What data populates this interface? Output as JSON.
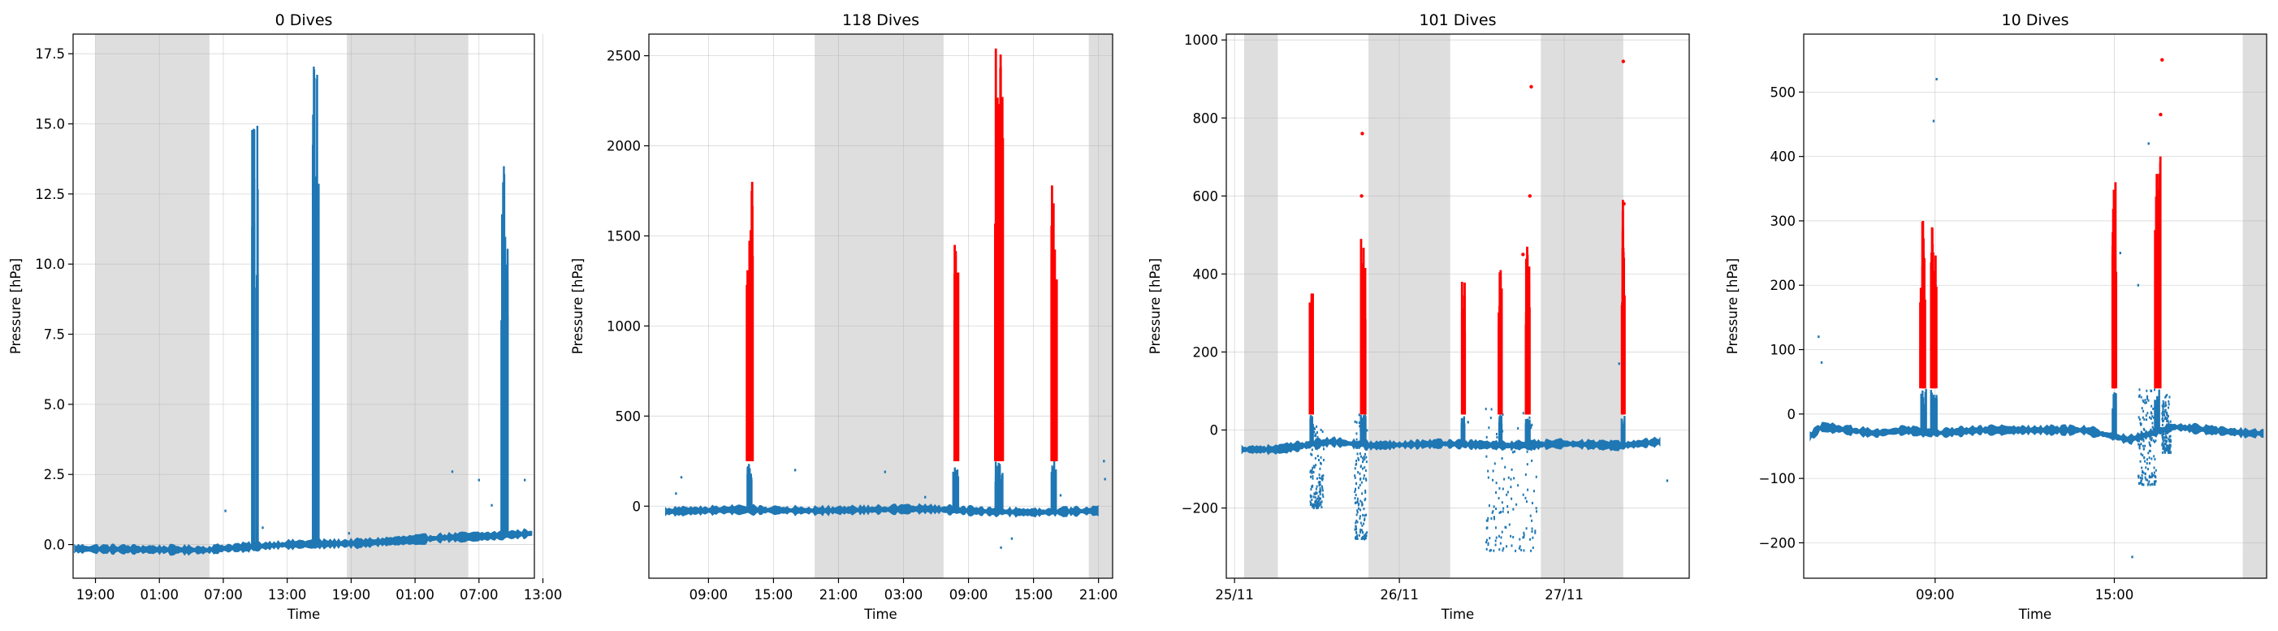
{
  "chart_data": [
    {
      "type": "scatter",
      "title": "0 Dives",
      "xlabel": "Time",
      "ylabel": "Pressure [hPa]",
      "x_ticks": [
        "19:00",
        "01:00",
        "07:00",
        "13:00",
        "19:00",
        "01:00",
        "07:00",
        "13:00"
      ],
      "x_tick_hours": [
        0,
        6,
        12,
        18,
        24,
        30,
        36,
        42
      ],
      "x_range_hours": [
        -2.1,
        41.2
      ],
      "y_ticks": [
        0.0,
        2.5,
        5.0,
        7.5,
        10.0,
        12.5,
        15.0,
        17.5
      ],
      "y_tick_labels": [
        "0.0",
        "2.5",
        "5.0",
        "7.5",
        "10.0",
        "12.5",
        "15.0",
        "17.5"
      ],
      "ylim": [
        -1.2,
        18.2
      ],
      "night_shading_hours": [
        [
          0,
          10.7
        ],
        [
          23.6,
          35
        ]
      ],
      "baseline": [
        [
          -2,
          -0.15
        ],
        [
          10.5,
          -0.2
        ],
        [
          11.5,
          -0.15
        ],
        [
          18,
          0.0
        ],
        [
          25,
          0.05
        ],
        [
          33,
          0.25
        ],
        [
          37,
          0.3
        ],
        [
          41,
          0.4
        ]
      ],
      "bursts": [
        {
          "hour": 15.0,
          "width": 0.6,
          "max": 15.2
        },
        {
          "hour": 20.7,
          "width": 0.6,
          "max": 17.3
        },
        {
          "hour": 38.4,
          "width": 0.6,
          "max": 13.6
        }
      ],
      "scatter_points": [
        [
          12.2,
          1.2
        ],
        [
          33.5,
          2.6
        ],
        [
          36.0,
          2.3
        ],
        [
          40.3,
          2.3
        ],
        [
          37.2,
          1.4
        ],
        [
          15.7,
          0.6
        ],
        [
          23.8,
          0.4
        ]
      ],
      "highlight_points": [],
      "series": [
        {
          "color": "#1f77b4"
        }
      ]
    },
    {
      "type": "scatter",
      "title": "118 Dives",
      "xlabel": "Time",
      "ylabel": "Pressure [hPa]",
      "x_ticks": [
        "09:00",
        "15:00",
        "21:00",
        "03:00",
        "09:00",
        "15:00",
        "21:00"
      ],
      "x_tick_hours": [
        0,
        6,
        12,
        18,
        24,
        30,
        36
      ],
      "x_range_hours": [
        -5.5,
        37.3
      ],
      "y_ticks": [
        0,
        500,
        1000,
        1500,
        2000,
        2500
      ],
      "y_tick_labels": [
        "0",
        "500",
        "1000",
        "1500",
        "2000",
        "2500"
      ],
      "ylim": [
        -400,
        2620
      ],
      "night_shading_hours": [
        [
          9.8,
          21.7
        ],
        [
          35.1,
          37.3
        ]
      ],
      "baseline": [
        [
          -4,
          -30
        ],
        [
          2,
          -20
        ],
        [
          10,
          -25
        ],
        [
          20,
          -15
        ],
        [
          26,
          -30
        ],
        [
          30,
          -35
        ],
        [
          36,
          -25
        ]
      ],
      "bursts": [
        {
          "hour": 3.8,
          "width": 0.6,
          "max": 1800
        },
        {
          "hour": 22.8,
          "width": 0.5,
          "max": 1450
        },
        {
          "hour": 26.8,
          "width": 0.8,
          "max": 2540
        },
        {
          "hour": 31.9,
          "width": 0.5,
          "max": 1780
        }
      ],
      "red_threshold": 250,
      "scatter_points": [
        [
          -2.5,
          160
        ],
        [
          -3.0,
          70
        ],
        [
          8.0,
          200
        ],
        [
          16.3,
          190
        ],
        [
          36.5,
          250
        ],
        [
          36.6,
          150
        ],
        [
          28.0,
          -180
        ],
        [
          27.0,
          -230
        ],
        [
          32.5,
          60
        ],
        [
          20.0,
          50
        ]
      ],
      "highlight_points": [],
      "series": [
        {
          "color": "#1f77b4"
        },
        {
          "color": "#ff0000"
        }
      ]
    },
    {
      "type": "scatter",
      "title": "101 Dives",
      "xlabel": "Time",
      "ylabel": "Pressure [hPa]",
      "x_ticks": [
        "25/11",
        "26/11",
        "27/11"
      ],
      "x_tick_hours": [
        0,
        24,
        48
      ],
      "x_range_hours": [
        -1.2,
        66.2
      ],
      "y_ticks": [
        -200,
        0,
        200,
        400,
        600,
        800,
        1000
      ],
      "y_tick_labels": [
        "−200",
        "0",
        "200",
        "400",
        "600",
        "800",
        "1000"
      ],
      "ylim": [
        -380,
        1015
      ],
      "night_shading_hours": [
        [
          1.4,
          6.3
        ],
        [
          19.5,
          31.4
        ],
        [
          44.6,
          56.6
        ]
      ],
      "baseline": [
        [
          1.0,
          -50
        ],
        [
          6.0,
          -50
        ],
        [
          14,
          -30
        ],
        [
          20,
          -40
        ],
        [
          30,
          -35
        ],
        [
          40,
          -40
        ],
        [
          48,
          -35
        ],
        [
          56,
          -40
        ],
        [
          62,
          -30
        ]
      ],
      "bursts": [
        {
          "hour": 11.2,
          "width": 0.3,
          "max": 350
        },
        {
          "hour": 18.7,
          "width": 0.8,
          "max": 490
        },
        {
          "hour": 33.3,
          "width": 0.3,
          "max": 380
        },
        {
          "hour": 38.7,
          "width": 0.3,
          "max": 410
        },
        {
          "hour": 42.7,
          "width": 0.6,
          "max": 470
        },
        {
          "hour": 56.6,
          "width": 0.4,
          "max": 590
        }
      ],
      "red_threshold": 40,
      "noise_regions": [
        {
          "from": 17.5,
          "to": 19.3,
          "min": -280,
          "max": 40
        },
        {
          "from": 36.5,
          "to": 44.0,
          "min": -310,
          "max": 60
        },
        {
          "from": 11.0,
          "to": 13.0,
          "min": -200,
          "max": 20
        }
      ],
      "scatter_points": [
        [
          18.6,
          760
        ],
        [
          18.5,
          600
        ],
        [
          43.2,
          880
        ],
        [
          43.0,
          600
        ],
        [
          56.6,
          945
        ],
        [
          56.7,
          580
        ],
        [
          42.0,
          450
        ],
        [
          34.0,
          20
        ],
        [
          56.0,
          170
        ],
        [
          63.0,
          -130
        ]
      ],
      "highlight_points": [
        [
          18.6,
          760
        ],
        [
          18.5,
          600
        ],
        [
          43.2,
          880
        ],
        [
          43.0,
          600
        ],
        [
          56.6,
          945
        ],
        [
          56.7,
          580
        ],
        [
          42.0,
          450
        ]
      ],
      "series": [
        {
          "color": "#1f77b4"
        },
        {
          "color": "#ff0000"
        }
      ]
    },
    {
      "type": "scatter",
      "title": "10 Dives",
      "xlabel": "Time",
      "ylabel": "Pressure [hPa]",
      "x_ticks": [
        "09:00",
        "15:00"
      ],
      "x_tick_hours": [
        9,
        15
      ],
      "x_range_hours": [
        4.6,
        20.1
      ],
      "y_ticks": [
        -200,
        -100,
        0,
        100,
        200,
        300,
        400,
        500
      ],
      "y_tick_labels": [
        "−200",
        "−100",
        "0",
        "100",
        "200",
        "300",
        "400",
        "500"
      ],
      "ylim": [
        -255,
        590
      ],
      "night_shading_hours": [
        [
          19.3,
          20.1
        ]
      ],
      "baseline": [
        [
          4.8,
          -35
        ],
        [
          5.2,
          -20
        ],
        [
          7.0,
          -30
        ],
        [
          8.0,
          -25
        ],
        [
          9.0,
          -30
        ],
        [
          10.5,
          -25
        ],
        [
          14.0,
          -25
        ],
        [
          15.5,
          -40
        ],
        [
          17.0,
          -20
        ],
        [
          19.5,
          -30
        ],
        [
          20.0,
          -30
        ]
      ],
      "bursts": [
        {
          "hour": 8.6,
          "width": 0.2,
          "max": 300
        },
        {
          "hour": 8.95,
          "width": 0.2,
          "max": 290
        },
        {
          "hour": 15.0,
          "width": 0.12,
          "max": 360
        },
        {
          "hour": 16.45,
          "width": 0.2,
          "max": 400
        }
      ],
      "red_threshold": 40,
      "noise_regions": [
        {
          "from": 15.8,
          "to": 16.4,
          "min": -110,
          "max": 40
        },
        {
          "from": 16.6,
          "to": 16.9,
          "min": -60,
          "max": 30
        }
      ],
      "scatter_points": [
        [
          9.05,
          520
        ],
        [
          8.95,
          455
        ],
        [
          16.6,
          550
        ],
        [
          16.55,
          465
        ],
        [
          16.15,
          420
        ],
        [
          15.6,
          -222
        ],
        [
          5.1,
          120
        ],
        [
          5.2,
          80
        ],
        [
          15.2,
          250
        ],
        [
          15.8,
          200
        ]
      ],
      "highlight_points": [
        [
          16.6,
          550
        ],
        [
          16.55,
          465
        ]
      ],
      "series": [
        {
          "color": "#1f77b4"
        },
        {
          "color": "#ff0000"
        }
      ]
    }
  ]
}
